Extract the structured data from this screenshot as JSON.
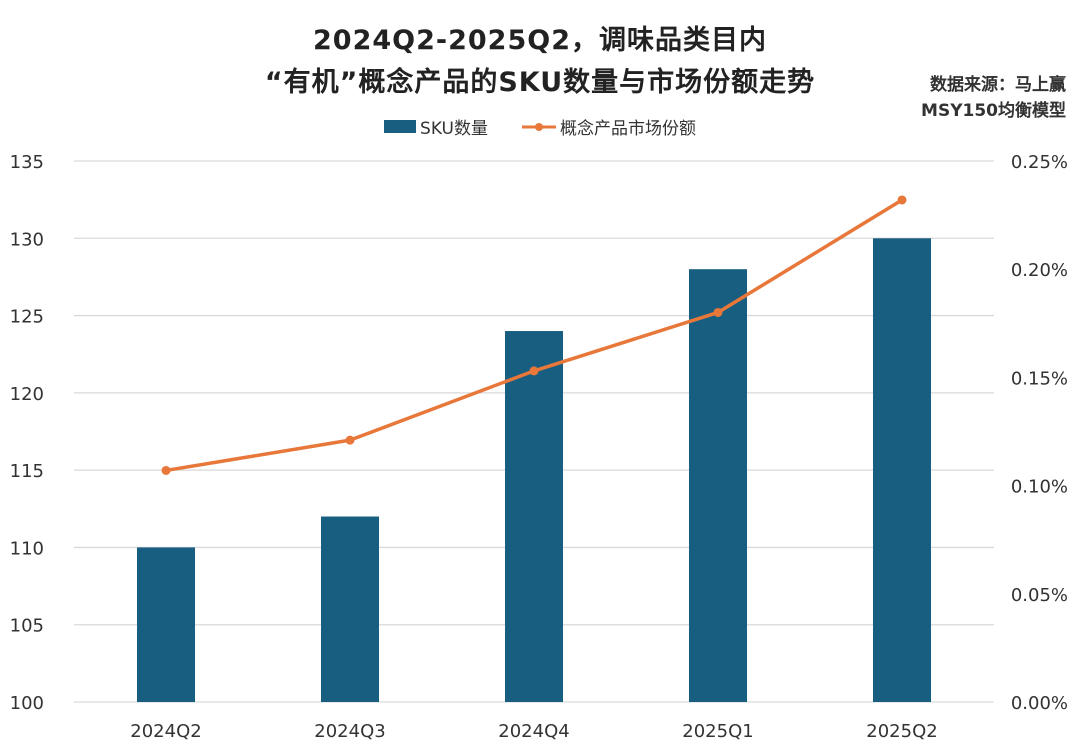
{
  "chart_data": {
    "type": "bar+line",
    "title_line1": "2024Q2-2025Q2，调味品类目内",
    "title_line2": "“有机”概念产品的SKU数量与市场份额走势",
    "source_line1": "数据来源：马上赢",
    "source_line2": "MSY150均衡模型",
    "categories": [
      "2024Q2",
      "2024Q3",
      "2024Q4",
      "2025Q1",
      "2025Q2"
    ],
    "series": [
      {
        "name": "SKU数量",
        "type": "bar",
        "axis": "left",
        "color": "#175e80",
        "values": [
          110,
          112,
          124,
          128,
          130
        ]
      },
      {
        "name": "概念产品市场份额",
        "type": "line",
        "axis": "right",
        "color": "#e8773a",
        "values": [
          0.107,
          0.121,
          0.153,
          0.18,
          0.232
        ],
        "unit": "%"
      }
    ],
    "left_axis": {
      "ylim": [
        100,
        135
      ],
      "ticks": [
        "100",
        "105",
        "110",
        "115",
        "120",
        "125",
        "130",
        "135"
      ]
    },
    "right_axis": {
      "ylim": [
        0,
        0.25
      ],
      "ticks": [
        "0.00%",
        "0.05%",
        "0.10%",
        "0.15%",
        "0.20%",
        "0.25%"
      ]
    },
    "grid": true,
    "legend": "top"
  }
}
